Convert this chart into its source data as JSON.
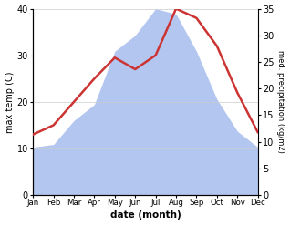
{
  "months": [
    "Jan",
    "Feb",
    "Mar",
    "Apr",
    "May",
    "Jun",
    "Jul",
    "Aug",
    "Sep",
    "Oct",
    "Nov",
    "Dec"
  ],
  "max_temp": [
    13.0,
    15.0,
    20.0,
    25.0,
    29.5,
    27.0,
    30.0,
    40.0,
    38.0,
    32.0,
    22.0,
    13.5
  ],
  "precipitation": [
    9.0,
    9.5,
    14.0,
    17.0,
    27.0,
    30.0,
    35.0,
    34.0,
    27.0,
    18.0,
    12.0,
    9.0
  ],
  "temp_color": "#cc3333",
  "precip_color": "#b3c6f0",
  "temp_ylim": [
    0,
    40
  ],
  "precip_ylim": [
    0,
    35
  ],
  "temp_yticks": [
    0,
    10,
    20,
    30,
    40
  ],
  "precip_yticks": [
    0,
    5,
    10,
    15,
    20,
    25,
    30,
    35
  ],
  "ylabel_left": "max temp (C)",
  "ylabel_right": "med. precipitation (kg/m2)",
  "xlabel": "date (month)",
  "bg_color": "#ffffff",
  "grid_color": "#cccccc"
}
